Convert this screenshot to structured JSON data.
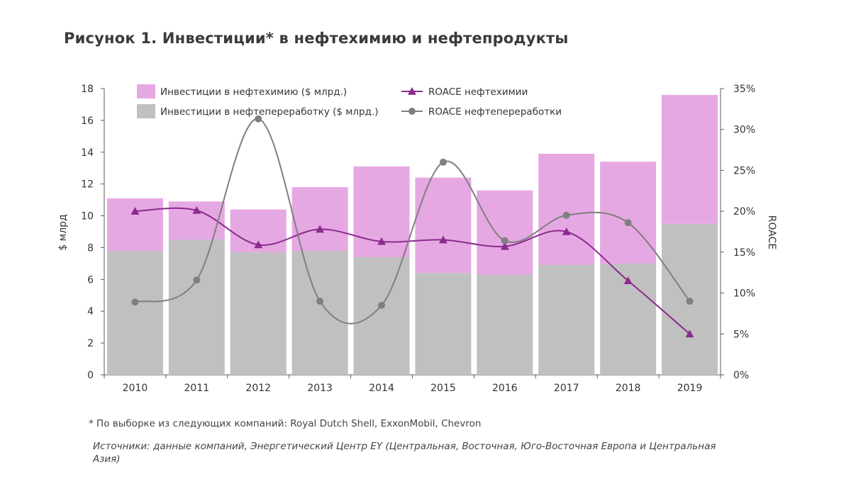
{
  "title": "Рисунок 1. Инвестиции* в нефтехимию и нефтепродукты",
  "footnote": "* По выборке из следующих компаний: Royal Dutch Shell, ExxonMobil, Chevron",
  "sources": "Источники: данные компаний, Энергетический Центр EY (Центральная, Восточная, Юго-Восточная Европа и Центральная Азия)",
  "colors": {
    "petrochem_bar": "#e6a8e3",
    "refining_bar": "#c0c0c0",
    "roace_petrochem": "#8b2a8e",
    "roace_refining": "#7f7f7f"
  },
  "chart_data": {
    "type": "bar",
    "stacked": true,
    "categories": [
      "2010",
      "2011",
      "2012",
      "2013",
      "2014",
      "2015",
      "2016",
      "2017",
      "2018",
      "2019"
    ],
    "ylabel": "$ млрд",
    "y2label": "ROACE",
    "ylim": [
      0,
      18
    ],
    "yticks": [
      "0",
      "2",
      "4",
      "6",
      "8",
      "10",
      "12",
      "14",
      "16",
      "18"
    ],
    "y2lim": [
      0,
      35
    ],
    "y2ticks": [
      "0%",
      "5%",
      "10%",
      "15%",
      "20%",
      "25%",
      "30%",
      "35%"
    ],
    "legend_position": "top",
    "series": [
      {
        "name": "Инвестиции в нефтепереработку ($ млрд.)",
        "kind": "bar",
        "axis": "left",
        "values": [
          7.8,
          8.5,
          7.7,
          7.8,
          7.4,
          6.4,
          6.3,
          6.9,
          7.0,
          9.5
        ]
      },
      {
        "name": "Инвестиции в нефтехимию ($ млрд.)",
        "kind": "bar",
        "axis": "left",
        "values": [
          3.3,
          2.4,
          2.7,
          4.0,
          5.7,
          6.0,
          5.3,
          7.0,
          6.4,
          8.1
        ]
      },
      {
        "name": "ROACE нефтехимии",
        "kind": "line",
        "marker": "triangle",
        "axis": "right",
        "values": [
          20.0,
          20.1,
          15.9,
          17.8,
          16.3,
          16.5,
          15.7,
          17.5,
          11.5,
          5.0
        ]
      },
      {
        "name": "ROACE нефтепереработки",
        "kind": "line",
        "marker": "circle",
        "axis": "right",
        "smooth": true,
        "values": [
          8.9,
          11.6,
          31.3,
          9.0,
          8.5,
          26.0,
          16.4,
          19.5,
          18.6,
          9.0
        ]
      }
    ]
  }
}
